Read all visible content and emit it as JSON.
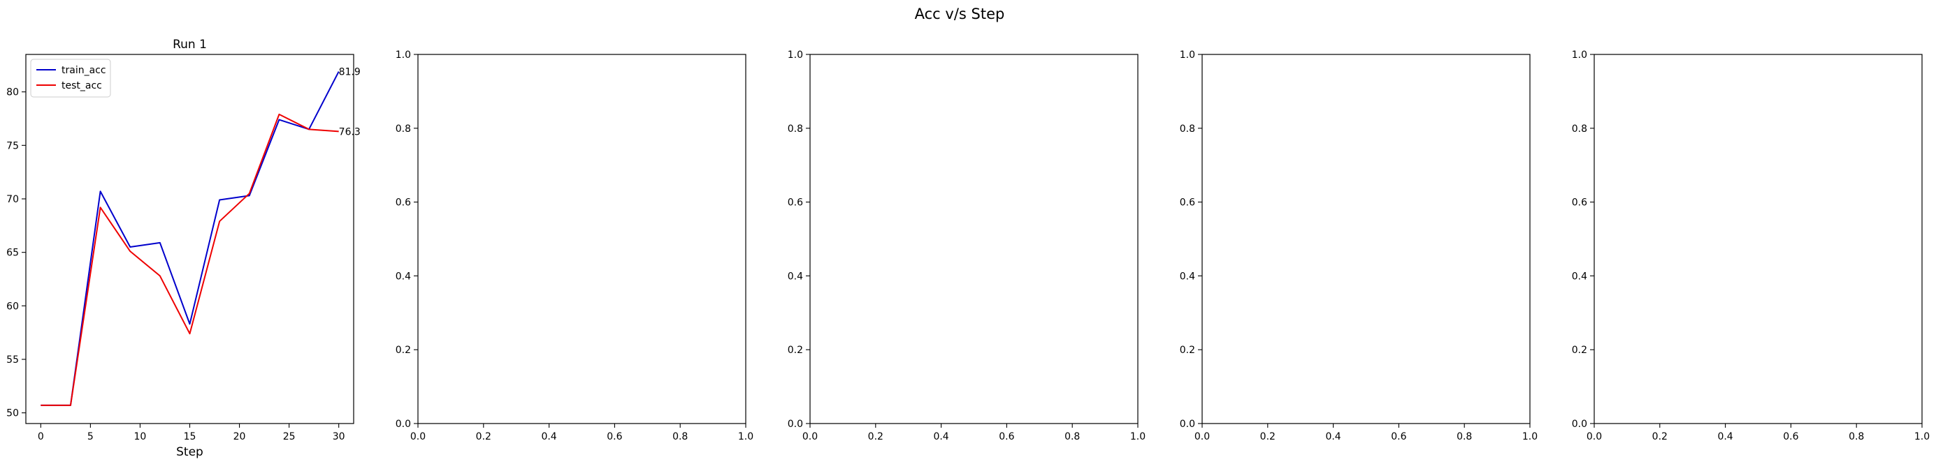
{
  "figure": {
    "suptitle": "Acc v/s Step"
  },
  "chart_data": [
    {
      "type": "line",
      "title": "Run 1",
      "xlabel": "Step",
      "ylabel": "",
      "xlim": [
        -1.5,
        31.5
      ],
      "ylim": [
        49.0,
        83.5
      ],
      "xticks": [
        0,
        5,
        10,
        15,
        20,
        25,
        30
      ],
      "yticks": [
        50,
        55,
        60,
        65,
        70,
        75,
        80
      ],
      "grid": false,
      "legend": "upper-left",
      "x": [
        0,
        3,
        6,
        9,
        12,
        15,
        18,
        21,
        24,
        27,
        30
      ],
      "series": [
        {
          "name": "train_acc",
          "color": "#0000cc",
          "values": [
            50.7,
            50.7,
            70.7,
            65.5,
            65.9,
            58.3,
            69.9,
            70.3,
            77.4,
            76.5,
            81.9
          ],
          "end_label": "81.9"
        },
        {
          "name": "test_acc",
          "color": "#ee0000",
          "values": [
            50.7,
            50.7,
            69.2,
            65.1,
            62.8,
            57.4,
            67.9,
            70.5,
            77.9,
            76.5,
            76.3
          ],
          "end_label": "76.3"
        }
      ]
    },
    {
      "type": "line",
      "title": "",
      "xlabel": "",
      "ylabel": "",
      "xlim": [
        0,
        1
      ],
      "ylim": [
        0,
        1
      ],
      "xticks": [
        "0.0",
        "0.2",
        "0.4",
        "0.6",
        "0.8",
        "1.0"
      ],
      "yticks": [
        "0.0",
        "0.2",
        "0.4",
        "0.6",
        "0.8",
        "1.0"
      ],
      "series": []
    },
    {
      "type": "line",
      "title": "",
      "xlabel": "",
      "ylabel": "",
      "xlim": [
        0,
        1
      ],
      "ylim": [
        0,
        1
      ],
      "xticks": [
        "0.0",
        "0.2",
        "0.4",
        "0.6",
        "0.8",
        "1.0"
      ],
      "yticks": [
        "0.0",
        "0.2",
        "0.4",
        "0.6",
        "0.8",
        "1.0"
      ],
      "series": []
    },
    {
      "type": "line",
      "title": "",
      "xlabel": "",
      "ylabel": "",
      "xlim": [
        0,
        1
      ],
      "ylim": [
        0,
        1
      ],
      "xticks": [
        "0.0",
        "0.2",
        "0.4",
        "0.6",
        "0.8",
        "1.0"
      ],
      "yticks": [
        "0.0",
        "0.2",
        "0.4",
        "0.6",
        "0.8",
        "1.0"
      ],
      "series": []
    },
    {
      "type": "line",
      "title": "",
      "xlabel": "",
      "ylabel": "",
      "xlim": [
        0,
        1
      ],
      "ylim": [
        0,
        1
      ],
      "xticks": [
        "0.0",
        "0.2",
        "0.4",
        "0.6",
        "0.8",
        "1.0"
      ],
      "yticks": [
        "0.0",
        "0.2",
        "0.4",
        "0.6",
        "0.8",
        "1.0"
      ],
      "series": []
    }
  ]
}
